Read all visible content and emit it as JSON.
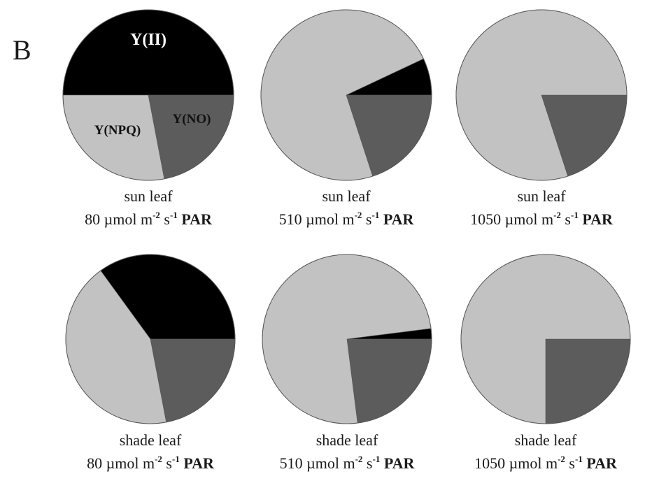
{
  "panel_letter": "B",
  "chart_data": [
    {
      "type": "pie",
      "leaf": "sun leaf",
      "par_value": "80",
      "slices": [
        {
          "name": "Y(II)",
          "value": 50,
          "color": "#000000",
          "label_color": "#ffffff"
        },
        {
          "name": "Y(NO)",
          "value": 22,
          "color": "#5c5c5c",
          "label_color": "#111111"
        },
        {
          "name": "Y(NPQ)",
          "value": 28,
          "color": "#c2c2c2",
          "label_color": "#111111"
        }
      ]
    },
    {
      "type": "pie",
      "leaf": "sun leaf",
      "par_value": "510",
      "slices": [
        {
          "name": "Y(II)",
          "value": 7,
          "color": "#000000"
        },
        {
          "name": "Y(NO)",
          "value": 20,
          "color": "#5c5c5c"
        },
        {
          "name": "Y(NPQ)",
          "value": 73,
          "color": "#c2c2c2"
        }
      ]
    },
    {
      "type": "pie",
      "leaf": "sun leaf",
      "par_value": "1050",
      "slices": [
        {
          "name": "Y(II)",
          "value": 0,
          "color": "#000000"
        },
        {
          "name": "Y(NO)",
          "value": 20,
          "color": "#5c5c5c"
        },
        {
          "name": "Y(NPQ)",
          "value": 80,
          "color": "#c2c2c2"
        }
      ]
    },
    {
      "type": "pie",
      "leaf": "shade leaf",
      "par_value": "80",
      "slices": [
        {
          "name": "Y(II)",
          "value": 35,
          "color": "#000000"
        },
        {
          "name": "Y(NO)",
          "value": 22,
          "color": "#5c5c5c"
        },
        {
          "name": "Y(NPQ)",
          "value": 43,
          "color": "#c2c2c2"
        }
      ]
    },
    {
      "type": "pie",
      "leaf": "shade leaf",
      "par_value": "510",
      "slices": [
        {
          "name": "Y(II)",
          "value": 2,
          "color": "#000000"
        },
        {
          "name": "Y(NO)",
          "value": 23,
          "color": "#5c5c5c"
        },
        {
          "name": "Y(NPQ)",
          "value": 75,
          "color": "#c2c2c2"
        }
      ]
    },
    {
      "type": "pie",
      "leaf": "shade leaf",
      "par_value": "1050",
      "slices": [
        {
          "name": "Y(II)",
          "value": 0,
          "color": "#000000"
        },
        {
          "name": "Y(NO)",
          "value": 25,
          "color": "#5c5c5c"
        },
        {
          "name": "Y(NPQ)",
          "value": 75,
          "color": "#c2c2c2"
        }
      ]
    }
  ],
  "caption_unit": {
    "pre": "µmol m",
    "exp1": "-2",
    "mid": " s",
    "exp2": "-1",
    "par": "PAR"
  }
}
